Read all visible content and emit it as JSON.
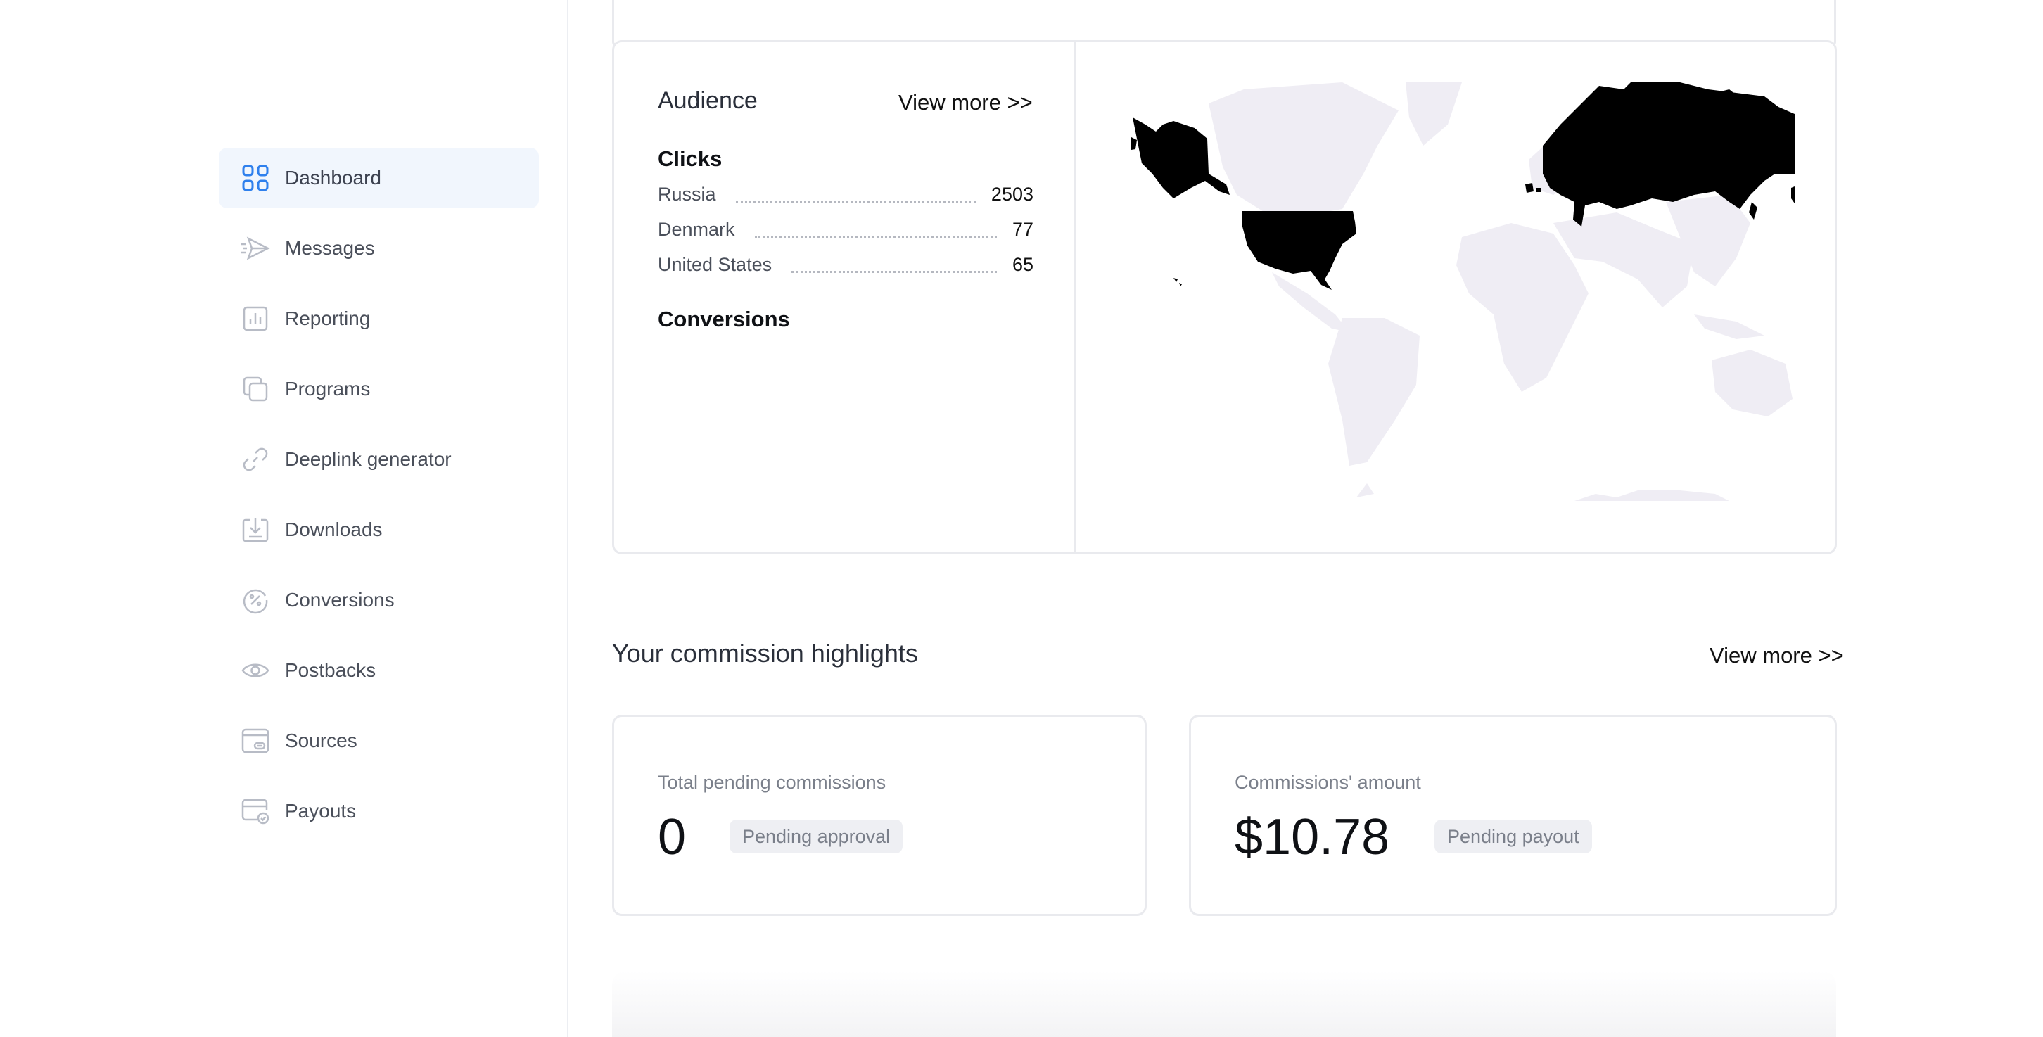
{
  "sidebar": {
    "items": [
      {
        "label": "Dashboard",
        "icon": "grid-icon",
        "active": true
      },
      {
        "label": "Messages",
        "icon": "paper-plane-icon"
      },
      {
        "label": "Reporting",
        "icon": "bar-chart-icon"
      },
      {
        "label": "Programs",
        "icon": "copy-icon"
      },
      {
        "label": "Deeplink generator",
        "icon": "link-icon"
      },
      {
        "label": "Downloads",
        "icon": "download-icon"
      },
      {
        "label": "Conversions",
        "icon": "percent-circle-icon"
      },
      {
        "label": "Postbacks",
        "icon": "eye-icon"
      },
      {
        "label": "Sources",
        "icon": "browser-link-icon"
      },
      {
        "label": "Payouts",
        "icon": "card-check-icon"
      }
    ]
  },
  "audience": {
    "title": "Audience",
    "view_more": "View more >>",
    "clicks_heading": "Clicks",
    "clicks": [
      {
        "country": "Russia",
        "value": "2503"
      },
      {
        "country": "Denmark",
        "value": "77"
      },
      {
        "country": "United States",
        "value": "65"
      }
    ],
    "conversions_heading": "Conversions",
    "map_colors": {
      "highlight": "#000000",
      "base": "#efedf4"
    }
  },
  "commissions": {
    "title": "Your commission highlights",
    "view_more": "View more >>",
    "pending": {
      "label": "Total pending commissions",
      "value": "0",
      "badge": "Pending approval"
    },
    "amount": {
      "label": "Commissions' amount",
      "value": "$10.78",
      "badge": "Pending payout"
    }
  },
  "colors": {
    "accent": "#2f80ed",
    "muted_icon": "#b8bcc6"
  }
}
